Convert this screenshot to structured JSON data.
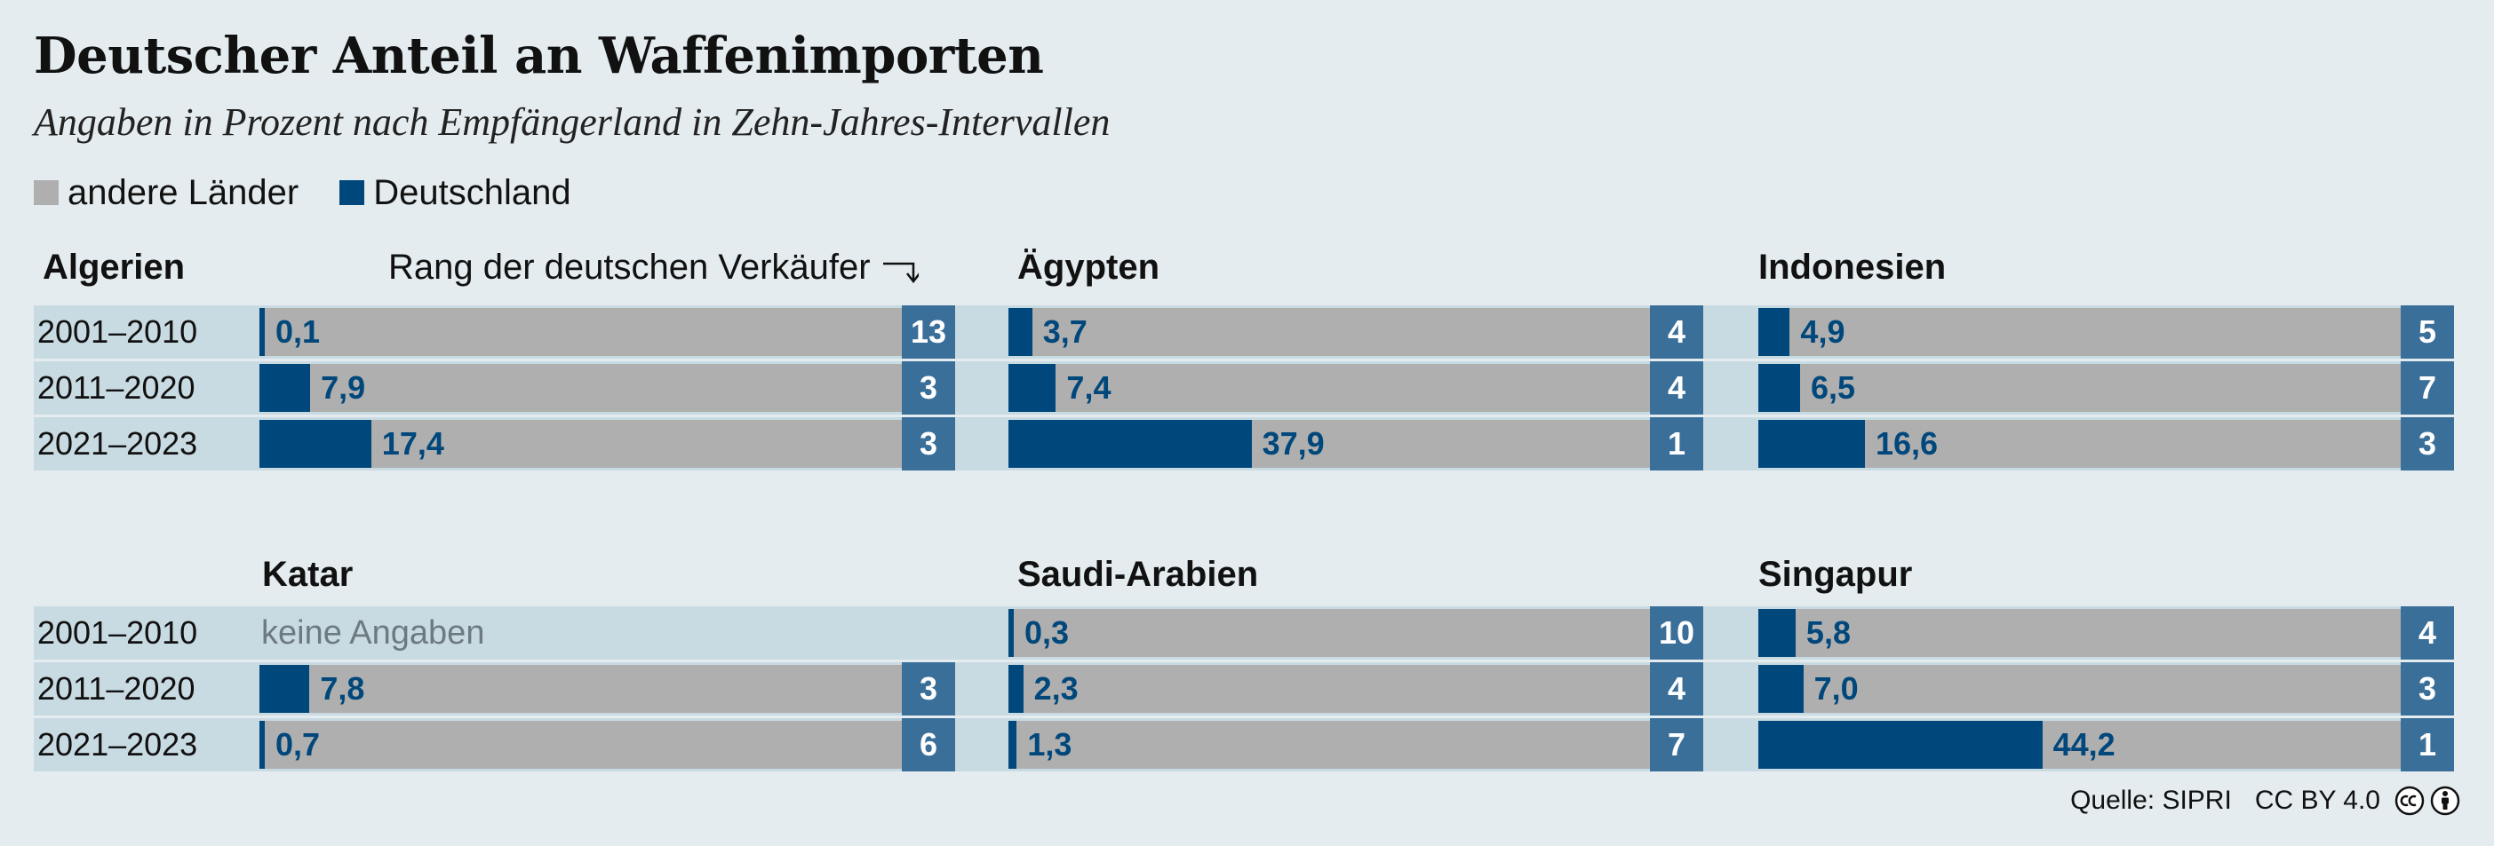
{
  "title": "Deutscher Anteil an Waffenimporten",
  "subtitle": "Angaben in Prozent nach Empfängerland in Zehn-Jahres-Intervallen",
  "legend": [
    {
      "label": "andere Länder",
      "color": "#afafaf"
    },
    {
      "label": "Deutschland",
      "color": "#00477b"
    }
  ],
  "rank_note": "Rang der deutschen Verkäufer",
  "no_data_label": "keine Angaben",
  "footer": {
    "source": "Quelle: SIPRI",
    "license": "CC BY 4.0",
    "icons": [
      "cc-icon",
      "by-icon"
    ]
  },
  "colors": {
    "germany": "#00477b",
    "others": "#afafaf",
    "rank_box": "#3a6f9a",
    "track": "#c9dbe2",
    "background": "#e4ecef"
  },
  "chart_data": {
    "type": "bar",
    "stacked_share": true,
    "periods": [
      "2001–2010",
      "2011–2020",
      "2021–2023"
    ],
    "panels": [
      {
        "country": "Algerien",
        "values": [
          0.1,
          7.9,
          17.4
        ],
        "value_labels": [
          "0,1",
          "7,9",
          "17,4"
        ],
        "ranks": [
          "13",
          "3",
          "3"
        ]
      },
      {
        "country": "Ägypten",
        "values": [
          3.7,
          7.4,
          37.9
        ],
        "value_labels": [
          "3,7",
          "7,4",
          "37,9"
        ],
        "ranks": [
          "4",
          "4",
          "1"
        ]
      },
      {
        "country": "Indonesien",
        "values": [
          4.9,
          6.5,
          16.6
        ],
        "value_labels": [
          "4,9",
          "6,5",
          "16,6"
        ],
        "ranks": [
          "5",
          "7",
          "3"
        ]
      },
      {
        "country": "Katar",
        "values": [
          null,
          7.8,
          0.7
        ],
        "value_labels": [
          "keine Angaben",
          "7,8",
          "0,7"
        ],
        "ranks": [
          "",
          "3",
          "6"
        ]
      },
      {
        "country": "Saudi-Arabien",
        "values": [
          0.3,
          2.3,
          1.3
        ],
        "value_labels": [
          "0,3",
          "2,3",
          "1,3"
        ],
        "ranks": [
          "10",
          "4",
          "7"
        ]
      },
      {
        "country": "Singapur",
        "values": [
          5.8,
          7.0,
          44.2
        ],
        "value_labels": [
          "5,8",
          "7,0",
          "44,2"
        ],
        "ranks": [
          "4",
          "3",
          "1"
        ]
      }
    ]
  }
}
